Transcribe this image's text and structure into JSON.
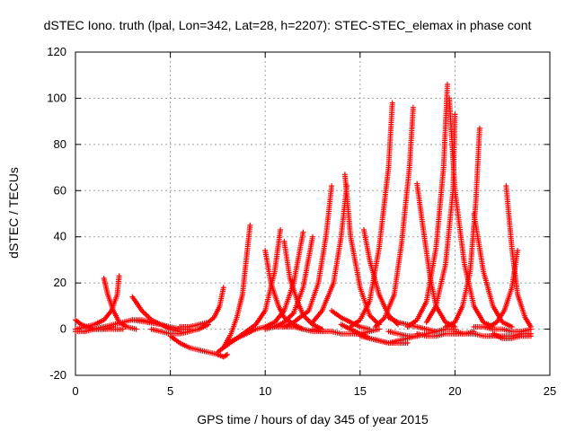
{
  "chart_data": {
    "type": "scatter",
    "title": "dSTEC Iono. truth (lpal, Lon=342, Lat=28, h=2207): STEC-STEC_elemax in phase cont",
    "xlabel": "GPS time / hours of day 345 of year 2015",
    "ylabel": "dSTEC  / TECUs",
    "xlim": [
      0,
      25
    ],
    "ylim": [
      -20,
      120
    ],
    "xticks": [
      "0",
      "5",
      "10",
      "15",
      "20",
      "25"
    ],
    "yticks": [
      "-20",
      "0",
      "20",
      "40",
      "60",
      "80",
      "100",
      "120"
    ],
    "grid": true,
    "marker": "+",
    "color": "#ff0000",
    "series": [
      {
        "x": [
          0.0,
          0.3,
          0.6,
          1.0,
          1.5,
          2.0
        ],
        "y": [
          4,
          2,
          1,
          0,
          0,
          1
        ]
      },
      {
        "x": [
          1.5,
          1.7,
          2.0,
          2.3,
          2.7,
          3.2
        ],
        "y": [
          22,
          15,
          8,
          3,
          1,
          0
        ]
      },
      {
        "x": [
          2.3,
          2.2,
          1.9,
          1.5,
          1.0,
          0.5,
          0.0
        ],
        "y": [
          23,
          15,
          8,
          4,
          2,
          1,
          0
        ]
      },
      {
        "x": [
          3.0,
          3.5,
          4.0,
          4.5,
          5.0,
          5.5
        ],
        "y": [
          14,
          8,
          4,
          2,
          0,
          -1
        ]
      },
      {
        "x": [
          3.0,
          3.8,
          4.5,
          5.0,
          5.5,
          6.0
        ],
        "y": [
          4,
          3,
          2,
          1,
          0,
          0
        ]
      },
      {
        "x": [
          5.0,
          5.5,
          6.0,
          6.5,
          7.0,
          7.5,
          7.8,
          8.0
        ],
        "y": [
          -3,
          -6,
          -8,
          -9,
          -10,
          -11,
          -12,
          -11
        ]
      },
      {
        "x": [
          5.5,
          6.0,
          6.5,
          7.0,
          7.3,
          7.6,
          7.8
        ],
        "y": [
          1,
          1,
          2,
          3,
          5,
          10,
          18
        ]
      },
      {
        "x": [
          7.5,
          7.8,
          8.2,
          8.5,
          8.8,
          9.0,
          9.2
        ],
        "y": [
          -10,
          -8,
          -2,
          5,
          15,
          30,
          45
        ]
      },
      {
        "x": [
          7.8,
          8.5,
          9.0,
          9.5,
          10.0,
          10.5,
          10.8
        ],
        "y": [
          -8,
          -4,
          -1,
          2,
          8,
          25,
          43
        ]
      },
      {
        "x": [
          10.0,
          10.3,
          10.7,
          11.0,
          11.5,
          12.0
        ],
        "y": [
          34,
          20,
          10,
          5,
          2,
          0
        ]
      },
      {
        "x": [
          11.0,
          11.3,
          11.7,
          12.0,
          12.5,
          13.0
        ],
        "y": [
          38,
          22,
          12,
          6,
          2,
          0
        ]
      },
      {
        "x": [
          12.0,
          11.5,
          11.0,
          10.5,
          10.0
        ],
        "y": [
          42,
          20,
          8,
          3,
          1
        ]
      },
      {
        "x": [
          12.5,
          12.0,
          11.5,
          11.0,
          10.5
        ],
        "y": [
          40,
          18,
          7,
          3,
          1
        ]
      },
      {
        "x": [
          13.5,
          13.2,
          12.8,
          12.3,
          11.5,
          11.0
        ],
        "y": [
          62,
          40,
          20,
          8,
          3,
          1
        ]
      },
      {
        "x": [
          14.2,
          14.5,
          15.0,
          15.5,
          16.0
        ],
        "y": [
          67,
          40,
          18,
          6,
          2
        ]
      },
      {
        "x": [
          14.3,
          14.0,
          13.6,
          13.0,
          12.5
        ],
        "y": [
          62,
          40,
          20,
          8,
          3
        ]
      },
      {
        "x": [
          15.2,
          15.5,
          16.0,
          16.5,
          17.0
        ],
        "y": [
          43,
          30,
          15,
          6,
          2
        ]
      },
      {
        "x": [
          16.7,
          16.5,
          16.0,
          15.5,
          15.0,
          14.5
        ],
        "y": [
          98,
          70,
          35,
          12,
          4,
          1
        ]
      },
      {
        "x": [
          17.8,
          17.6,
          17.2,
          16.8,
          16.3,
          15.8
        ],
        "y": [
          96,
          70,
          38,
          15,
          5,
          1
        ]
      },
      {
        "x": [
          18.0,
          18.3,
          18.7,
          19.0,
          19.5,
          20.0
        ],
        "y": [
          63,
          45,
          22,
          10,
          3,
          1
        ]
      },
      {
        "x": [
          19.6,
          19.4,
          19.0,
          18.5,
          18.0,
          17.5
        ],
        "y": [
          106,
          70,
          35,
          12,
          4,
          1
        ]
      },
      {
        "x": [
          19.7,
          20.0,
          20.5,
          21.0,
          21.5,
          22.0
        ],
        "y": [
          100,
          60,
          28,
          10,
          3,
          1
        ]
      },
      {
        "x": [
          20.0,
          19.9,
          19.5,
          19.0,
          18.5
        ],
        "y": [
          93,
          60,
          28,
          10,
          3
        ]
      },
      {
        "x": [
          21.3,
          21.1,
          20.8,
          20.4,
          20.0,
          19.5
        ],
        "y": [
          87,
          55,
          25,
          10,
          3,
          1
        ]
      },
      {
        "x": [
          21.0,
          21.5,
          22.0,
          22.5,
          23.0
        ],
        "y": [
          50,
          25,
          10,
          3,
          1
        ]
      },
      {
        "x": [
          22.7,
          23.0,
          23.3,
          23.7,
          24.0
        ],
        "y": [
          62,
          35,
          15,
          5,
          1
        ]
      },
      {
        "x": [
          23.3,
          23.0,
          22.6,
          22.2,
          21.8
        ],
        "y": [
          34,
          18,
          8,
          3,
          1
        ]
      },
      {
        "x": [
          22.0,
          22.5,
          23.0,
          23.5,
          24.0
        ],
        "y": [
          -2,
          -4,
          -4,
          -3,
          -3
        ]
      },
      {
        "x": [
          18.0,
          18.5,
          19.0,
          19.5,
          20.0,
          20.5,
          21.0
        ],
        "y": [
          -2,
          -3,
          -3,
          -2,
          -2,
          -2,
          -1
        ]
      },
      {
        "x": [
          14.0,
          14.5,
          15.0,
          15.5,
          16.0,
          16.5,
          17.0,
          17.5,
          18.0
        ],
        "y": [
          2,
          0,
          -2,
          -4,
          -5,
          -6,
          -5,
          -4,
          -3
        ]
      },
      {
        "x": [
          16.5,
          17.0,
          17.5,
          18.0,
          18.5,
          19.0
        ],
        "y": [
          5,
          3,
          2,
          1,
          0,
          -1
        ]
      },
      {
        "x": [
          13.5,
          14.0,
          14.5,
          15.0,
          15.5
        ],
        "y": [
          8,
          5,
          3,
          1,
          0
        ]
      },
      {
        "x": [
          15.0,
          15.5,
          16.0,
          16.5,
          17.0,
          17.5
        ],
        "y": [
          -3,
          -4,
          -5,
          -6,
          -6,
          -6
        ]
      },
      {
        "x": [
          10.0,
          10.5,
          11.0,
          11.5,
          12.0,
          12.5,
          13.0
        ],
        "y": [
          0,
          1,
          1,
          1,
          0,
          -1,
          -1
        ]
      },
      {
        "x": [
          12.5,
          13.0,
          13.5,
          14.0,
          14.5,
          15.0,
          15.5,
          16.0
        ],
        "y": [
          0,
          -1,
          -1,
          -2,
          -2,
          -2,
          -1,
          0
        ]
      },
      {
        "x": [
          16.5,
          17.0,
          17.5,
          18.0,
          18.5,
          19.0,
          19.5,
          20.0
        ],
        "y": [
          -1,
          -2,
          -3,
          -3,
          -2,
          -1,
          0,
          0
        ]
      },
      {
        "x": [
          20.0,
          20.5,
          21.0,
          21.5,
          22.0,
          22.5,
          23.0,
          23.5,
          24.0
        ],
        "y": [
          -1,
          -2,
          -2,
          -3,
          -3,
          -3,
          -3,
          -2,
          -2
        ]
      },
      {
        "x": [
          21.0,
          21.5,
          22.0,
          22.5,
          23.0,
          23.5,
          24.0
        ],
        "y": [
          1,
          1,
          0,
          0,
          -1,
          -1,
          0
        ]
      },
      {
        "x": [
          1.0,
          1.5,
          2.0,
          2.5,
          3.0,
          3.5,
          4.0
        ],
        "y": [
          0,
          1,
          2,
          3,
          4,
          4,
          3
        ]
      },
      {
        "x": [
          0.0,
          0.5,
          1.0,
          1.5,
          2.0,
          2.5
        ],
        "y": [
          -1,
          -1,
          0,
          0,
          0,
          0
        ]
      },
      {
        "x": [
          4.0,
          4.5,
          5.0,
          5.5,
          6.0,
          6.5,
          7.0
        ],
        "y": [
          0,
          -1,
          -2,
          -2,
          -1,
          0,
          2
        ]
      },
      {
        "x": [
          8.0,
          8.5,
          9.0,
          9.5,
          10.0
        ],
        "y": [
          -6,
          -4,
          -2,
          0,
          1
        ]
      }
    ]
  }
}
